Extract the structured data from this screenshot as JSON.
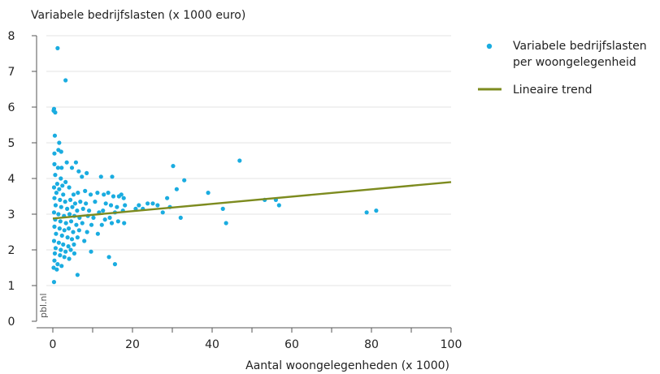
{
  "chart_data": {
    "type": "scatter",
    "ylabel": "Variabele bedrijfslasten (x 1000 euro)",
    "xlabel": "Aantal woongelegenheden (x 1000)",
    "source_label": "pbl.nl",
    "xlim": [
      0,
      100
    ],
    "ylim": [
      0,
      8
    ],
    "xticks": [
      0,
      20,
      40,
      60,
      80,
      100
    ],
    "yticks": [
      0,
      1,
      2,
      3,
      4,
      5,
      6,
      7,
      8
    ],
    "grid": "horizontal",
    "legend_position": "right",
    "colors": {
      "points": "#1aace0",
      "trend": "#7d8b1f",
      "grid": "#e3e3e3",
      "axis": "#555555"
    },
    "series": [
      {
        "name": "Variabele bedrijfslasten per woongelegenheid",
        "kind": "scatter",
        "points": [
          [
            1.2,
            7.65
          ],
          [
            3.2,
            6.75
          ],
          [
            0.3,
            5.95
          ],
          [
            0.6,
            5.85
          ],
          [
            0.2,
            5.9
          ],
          [
            0.5,
            5.2
          ],
          [
            1.6,
            5.0
          ],
          [
            1.4,
            4.8
          ],
          [
            0.4,
            4.7
          ],
          [
            2.1,
            4.75
          ],
          [
            3.5,
            4.45
          ],
          [
            5.8,
            4.45
          ],
          [
            0.4,
            4.4
          ],
          [
            1.3,
            4.3
          ],
          [
            2.2,
            4.3
          ],
          [
            6.5,
            4.2
          ],
          [
            8.5,
            4.15
          ],
          [
            4.8,
            4.3
          ],
          [
            7.3,
            4.05
          ],
          [
            12.1,
            4.05
          ],
          [
            14.9,
            4.05
          ],
          [
            0.6,
            4.1
          ],
          [
            2.0,
            4.0
          ],
          [
            1.1,
            3.85
          ],
          [
            3.2,
            3.9
          ],
          [
            0.3,
            3.75
          ],
          [
            1.6,
            3.7
          ],
          [
            2.4,
            3.8
          ],
          [
            4.1,
            3.75
          ],
          [
            0.9,
            3.6
          ],
          [
            2.6,
            3.55
          ],
          [
            5.2,
            3.55
          ],
          [
            6.3,
            3.6
          ],
          [
            8.1,
            3.65
          ],
          [
            9.5,
            3.55
          ],
          [
            11.2,
            3.6
          ],
          [
            12.8,
            3.55
          ],
          [
            13.9,
            3.6
          ],
          [
            15.2,
            3.5
          ],
          [
            16.6,
            3.5
          ],
          [
            17.2,
            3.55
          ],
          [
            17.8,
            3.45
          ],
          [
            0.4,
            3.45
          ],
          [
            1.8,
            3.4
          ],
          [
            3.1,
            3.35
          ],
          [
            4.4,
            3.4
          ],
          [
            5.6,
            3.3
          ],
          [
            6.9,
            3.35
          ],
          [
            8.3,
            3.3
          ],
          [
            10.6,
            3.35
          ],
          [
            13.3,
            3.3
          ],
          [
            14.6,
            3.25
          ],
          [
            16.1,
            3.2
          ],
          [
            18.1,
            3.25
          ],
          [
            0.7,
            3.25
          ],
          [
            2.1,
            3.2
          ],
          [
            3.6,
            3.15
          ],
          [
            4.9,
            3.2
          ],
          [
            6.1,
            3.1
          ],
          [
            7.6,
            3.15
          ],
          [
            9.1,
            3.1
          ],
          [
            11.6,
            3.05
          ],
          [
            12.6,
            3.1
          ],
          [
            15.6,
            3.05
          ],
          [
            17.6,
            3.1
          ],
          [
            0.3,
            3.05
          ],
          [
            1.4,
            3.0
          ],
          [
            2.8,
            2.95
          ],
          [
            4.2,
            3.0
          ],
          [
            5.4,
            2.95
          ],
          [
            6.7,
            2.9
          ],
          [
            8.8,
            2.95
          ],
          [
            10.2,
            2.9
          ],
          [
            13.1,
            2.85
          ],
          [
            14.3,
            2.9
          ],
          [
            16.4,
            2.8
          ],
          [
            17.9,
            2.75
          ],
          [
            0.6,
            2.85
          ],
          [
            1.9,
            2.8
          ],
          [
            3.3,
            2.75
          ],
          [
            4.6,
            2.8
          ],
          [
            5.9,
            2.7
          ],
          [
            7.4,
            2.75
          ],
          [
            9.7,
            2.7
          ],
          [
            12.3,
            2.7
          ],
          [
            14.8,
            2.75
          ],
          [
            0.4,
            2.65
          ],
          [
            1.7,
            2.6
          ],
          [
            2.9,
            2.55
          ],
          [
            4.0,
            2.6
          ],
          [
            5.1,
            2.5
          ],
          [
            6.6,
            2.55
          ],
          [
            8.6,
            2.5
          ],
          [
            11.3,
            2.45
          ],
          [
            0.8,
            2.45
          ],
          [
            2.3,
            2.4
          ],
          [
            3.7,
            2.35
          ],
          [
            4.8,
            2.3
          ],
          [
            6.2,
            2.35
          ],
          [
            7.9,
            2.25
          ],
          [
            0.3,
            2.25
          ],
          [
            1.5,
            2.2
          ],
          [
            2.6,
            2.15
          ],
          [
            3.9,
            2.1
          ],
          [
            5.3,
            2.15
          ],
          [
            0.7,
            2.05
          ],
          [
            2.0,
            2.0
          ],
          [
            3.2,
            1.95
          ],
          [
            4.5,
            2.0
          ],
          [
            0.5,
            1.9
          ],
          [
            1.8,
            1.85
          ],
          [
            2.9,
            1.8
          ],
          [
            4.1,
            1.75
          ],
          [
            0.4,
            1.7
          ],
          [
            1.2,
            1.6
          ],
          [
            0.2,
            1.5
          ],
          [
            1.0,
            1.45
          ],
          [
            2.2,
            1.55
          ],
          [
            5.4,
            1.9
          ],
          [
            9.6,
            1.95
          ],
          [
            14.1,
            1.8
          ],
          [
            15.6,
            1.6
          ],
          [
            6.2,
            1.3
          ],
          [
            0.3,
            1.1
          ],
          [
            20.8,
            3.15
          ],
          [
            21.6,
            3.25
          ],
          [
            22.6,
            3.15
          ],
          [
            23.8,
            3.3
          ],
          [
            25.1,
            3.3
          ],
          [
            26.3,
            3.25
          ],
          [
            27.6,
            3.05
          ],
          [
            28.7,
            3.45
          ],
          [
            29.4,
            3.2
          ],
          [
            30.2,
            4.35
          ],
          [
            31.1,
            3.7
          ],
          [
            32.1,
            2.9
          ],
          [
            33.0,
            3.95
          ],
          [
            39.0,
            3.6
          ],
          [
            42.7,
            3.15
          ],
          [
            43.5,
            2.75
          ],
          [
            46.9,
            4.5
          ],
          [
            53.2,
            3.4
          ],
          [
            56.0,
            3.4
          ],
          [
            56.8,
            3.25
          ],
          [
            78.8,
            3.05
          ],
          [
            81.2,
            3.1
          ]
        ]
      },
      {
        "name": "Lineaire trend",
        "kind": "line",
        "x": [
          0,
          100
        ],
        "y": [
          2.88,
          3.9
        ]
      }
    ]
  }
}
